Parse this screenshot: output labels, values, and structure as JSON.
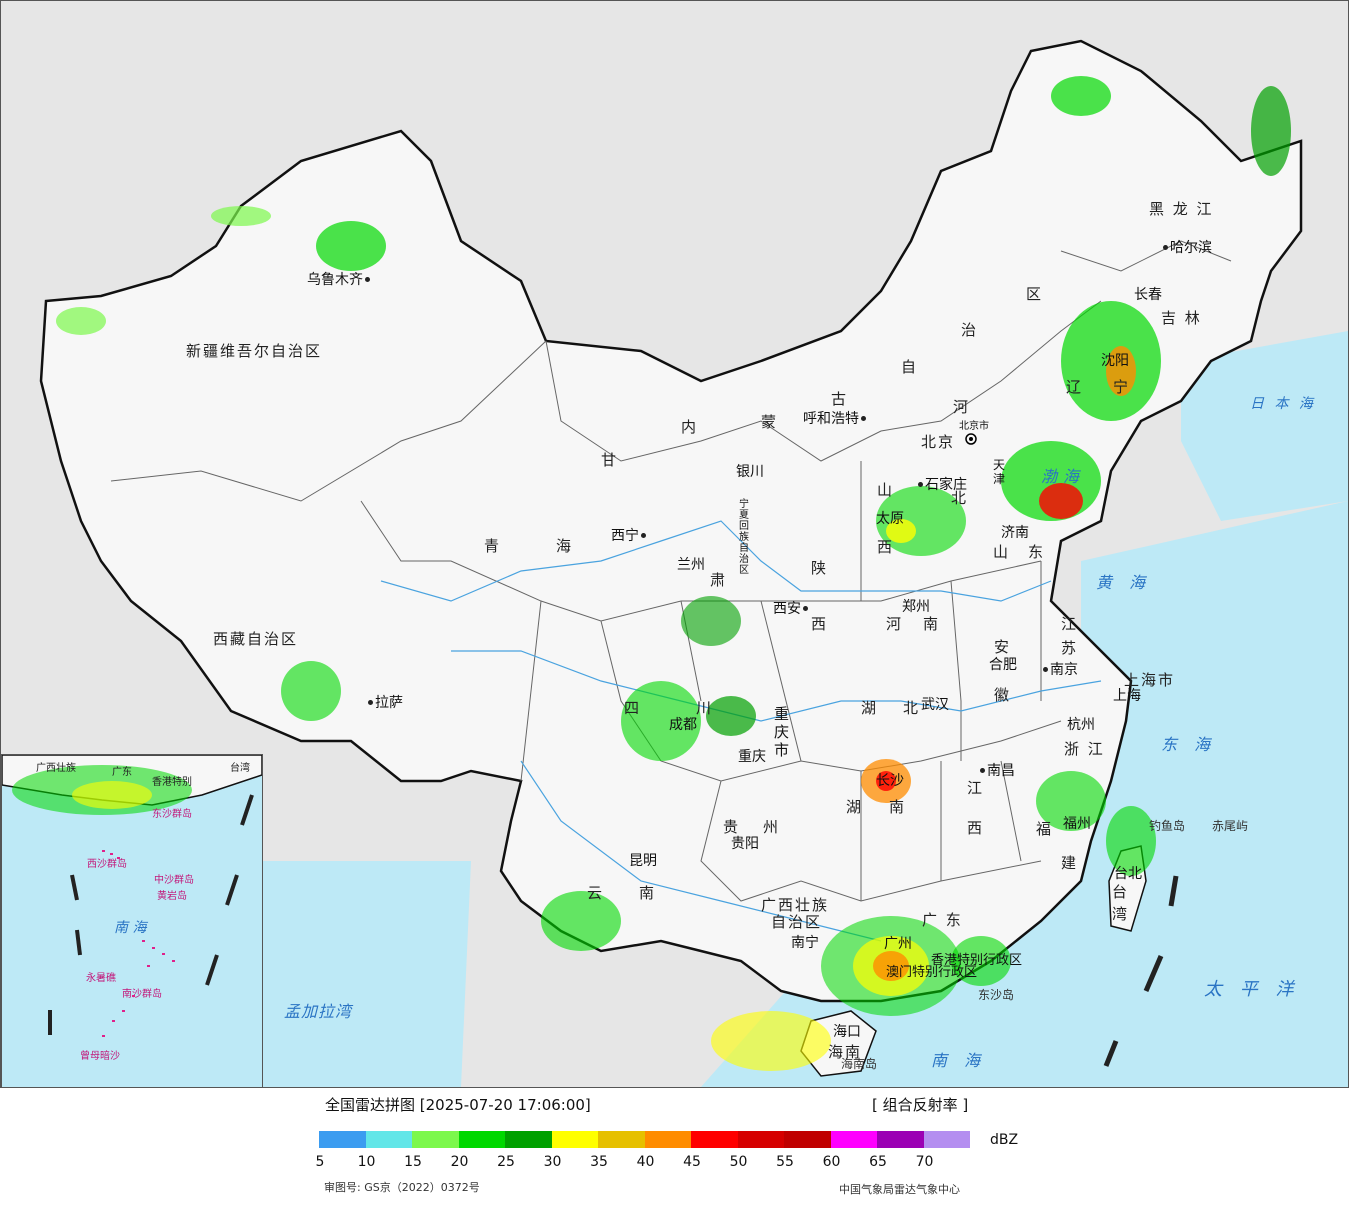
{
  "map": {
    "provinces": [
      {
        "id": "xinjiang",
        "text": "新疆维吾尔自治区"
      },
      {
        "id": "xizang",
        "text": "西藏自治区"
      },
      {
        "id": "qinghai-1",
        "text": "青"
      },
      {
        "id": "qinghai-2",
        "text": "海"
      },
      {
        "id": "gansu-1",
        "text": "甘"
      },
      {
        "id": "gansu-2",
        "text": "肃"
      },
      {
        "id": "neimenggu-1",
        "text": "内"
      },
      {
        "id": "neimenggu-2",
        "text": "蒙"
      },
      {
        "id": "neimenggu-3",
        "text": "古"
      },
      {
        "id": "neimenggu-4",
        "text": "自"
      },
      {
        "id": "neimenggu-5",
        "text": "治"
      },
      {
        "id": "neimenggu-6",
        "text": "区"
      },
      {
        "id": "heilongjiang",
        "text": "黑 龙 江"
      },
      {
        "id": "jilin",
        "text": "吉 林"
      },
      {
        "id": "liaoning-1",
        "text": "辽"
      },
      {
        "id": "liaoning-2",
        "text": "宁"
      },
      {
        "id": "hebei-1",
        "text": "河"
      },
      {
        "id": "hebei-2",
        "text": "北"
      },
      {
        "id": "shanxi-1",
        "text": "山"
      },
      {
        "id": "shanxi-2",
        "text": "西"
      },
      {
        "id": "shaanxi-1",
        "text": "陕"
      },
      {
        "id": "shaanxi-2",
        "text": "西"
      },
      {
        "id": "ningxia",
        "text": "宁夏回族自治区"
      },
      {
        "id": "shandong-1",
        "text": "山"
      },
      {
        "id": "shandong-2",
        "text": "东"
      },
      {
        "id": "henan-1",
        "text": "河"
      },
      {
        "id": "henan-2",
        "text": "南"
      },
      {
        "id": "jiangsu-1",
        "text": "江"
      },
      {
        "id": "jiangsu-2",
        "text": "苏"
      },
      {
        "id": "anhui-1",
        "text": "安"
      },
      {
        "id": "anhui-2",
        "text": "徽"
      },
      {
        "id": "hubei-1",
        "text": "湖"
      },
      {
        "id": "hubei-2",
        "text": "北"
      },
      {
        "id": "sichuan-1",
        "text": "四"
      },
      {
        "id": "sichuan-2",
        "text": "川"
      },
      {
        "id": "chongqing",
        "text": "重庆市"
      },
      {
        "id": "hunan-1",
        "text": "湖"
      },
      {
        "id": "hunan-2",
        "text": "南"
      },
      {
        "id": "jiangxi-1",
        "text": "江"
      },
      {
        "id": "jiangxi-2",
        "text": "西"
      },
      {
        "id": "zhejiang",
        "text": "浙 江"
      },
      {
        "id": "fujian-1",
        "text": "福"
      },
      {
        "id": "fujian-2",
        "text": "建"
      },
      {
        "id": "guizhou-1",
        "text": "贵"
      },
      {
        "id": "guizhou-2",
        "text": "州"
      },
      {
        "id": "yunnan-1",
        "text": "云"
      },
      {
        "id": "yunnan-2",
        "text": "南"
      },
      {
        "id": "guangxi-1",
        "text": "广西壮族"
      },
      {
        "id": "guangxi-2",
        "text": "自治区"
      },
      {
        "id": "guangdong",
        "text": "广 东"
      },
      {
        "id": "hainan",
        "text": "海南"
      },
      {
        "id": "taiwan-1",
        "text": "台"
      },
      {
        "id": "taiwan-2",
        "text": "湾"
      },
      {
        "id": "shanghai",
        "text": "上海市"
      },
      {
        "id": "tianjin",
        "text": "天津"
      },
      {
        "id": "hongkong",
        "text": "香港特别行政区"
      },
      {
        "id": "macau",
        "text": "澳门特别行政区"
      }
    ],
    "cities": [
      {
        "id": "urumqi",
        "text": "乌鲁木齐"
      },
      {
        "id": "lhasa",
        "text": "拉萨"
      },
      {
        "id": "xining",
        "text": "西宁"
      },
      {
        "id": "lanzhou",
        "text": "兰州"
      },
      {
        "id": "yinchuan",
        "text": "银川"
      },
      {
        "id": "hohhot",
        "text": "呼和浩特"
      },
      {
        "id": "beijing",
        "text": "北京"
      },
      {
        "id": "shijiazhuang",
        "text": "石家庄"
      },
      {
        "id": "taiyuan",
        "text": "太原"
      },
      {
        "id": "jinan",
        "text": "济南"
      },
      {
        "id": "zhengzhou",
        "text": "郑州"
      },
      {
        "id": "xian",
        "text": "西安"
      },
      {
        "id": "hefei",
        "text": "合肥"
      },
      {
        "id": "nanjing",
        "text": "南京"
      },
      {
        "id": "shanghai-city",
        "text": "上海"
      },
      {
        "id": "hangzhou",
        "text": "杭州"
      },
      {
        "id": "wuhan",
        "text": "武汉"
      },
      {
        "id": "chengdu",
        "text": "成都"
      },
      {
        "id": "chongqing-city",
        "text": "重庆"
      },
      {
        "id": "nanchang",
        "text": "南昌"
      },
      {
        "id": "changsha",
        "text": "长沙"
      },
      {
        "id": "guiyang",
        "text": "贵阳"
      },
      {
        "id": "kunming",
        "text": "昆明"
      },
      {
        "id": "nanning",
        "text": "南宁"
      },
      {
        "id": "guangzhou",
        "text": "广州"
      },
      {
        "id": "fuzhou",
        "text": "福州"
      },
      {
        "id": "taibei",
        "text": "台北"
      },
      {
        "id": "haikou",
        "text": "海口"
      },
      {
        "id": "shenyang",
        "text": "沈阳"
      },
      {
        "id": "changchun",
        "text": "长春"
      },
      {
        "id": "harbin",
        "text": "哈尔滨"
      },
      {
        "id": "beijingshi",
        "text": "北京市"
      }
    ],
    "seas": [
      {
        "id": "bohai",
        "text": "渤海"
      },
      {
        "id": "huanghai",
        "text": "黄 海"
      },
      {
        "id": "donghai",
        "text": "东 海"
      },
      {
        "id": "nanhai",
        "text": "南 海"
      },
      {
        "id": "taipingyang",
        "text": "太 平 洋"
      },
      {
        "id": "ribenhai",
        "text": "日 本 海"
      },
      {
        "id": "mengjialawan",
        "text": "孟加拉湾"
      }
    ],
    "islands": [
      {
        "id": "diaoyudao",
        "text": "钓鱼岛"
      },
      {
        "id": "chiweiyu",
        "text": "赤尾屿"
      },
      {
        "id": "dongshadao",
        "text": "东沙岛"
      },
      {
        "id": "hainandao",
        "text": "海南岛"
      }
    ],
    "inset": {
      "labels": [
        {
          "id": "inset-guangxi",
          "text": "广西壮族"
        },
        {
          "id": "inset-guangdong",
          "text": "广东"
        },
        {
          "id": "inset-taiwan",
          "text": "台湾"
        },
        {
          "id": "inset-hk",
          "text": "香港特别"
        },
        {
          "id": "inset-dongsha",
          "text": "东沙群岛"
        },
        {
          "id": "inset-xisha",
          "text": "西沙群岛"
        },
        {
          "id": "inset-zhongsha",
          "text": "中沙群岛"
        },
        {
          "id": "inset-huangyan",
          "text": "黄岩岛"
        },
        {
          "id": "inset-nanhai",
          "text": "南 海"
        },
        {
          "id": "inset-yongshu",
          "text": "永暑礁"
        },
        {
          "id": "inset-nansha",
          "text": "南沙群岛"
        },
        {
          "id": "inset-zengmu",
          "text": "曾母暗沙"
        }
      ]
    }
  },
  "legend": {
    "title": "全国雷达拼图 [2025-07-20 17:06:00]",
    "product": "[ 组合反射率 ]",
    "unit": "dBZ",
    "colors": [
      "#3b9cf0",
      "#62e6e8",
      "#7cf84c",
      "#00d800",
      "#00a000",
      "#ffff00",
      "#e6c000",
      "#ff8c00",
      "#ff0000",
      "#d60000",
      "#c00000",
      "#ff00ff",
      "#9b00b4",
      "#b48ef0"
    ],
    "ticks": [
      "5",
      "10",
      "15",
      "20",
      "25",
      "30",
      "35",
      "40",
      "45",
      "50",
      "55",
      "60",
      "65",
      "70"
    ],
    "approval": "审图号: GS京（2022）0372号",
    "source": "中国气象局雷达气象中心"
  }
}
